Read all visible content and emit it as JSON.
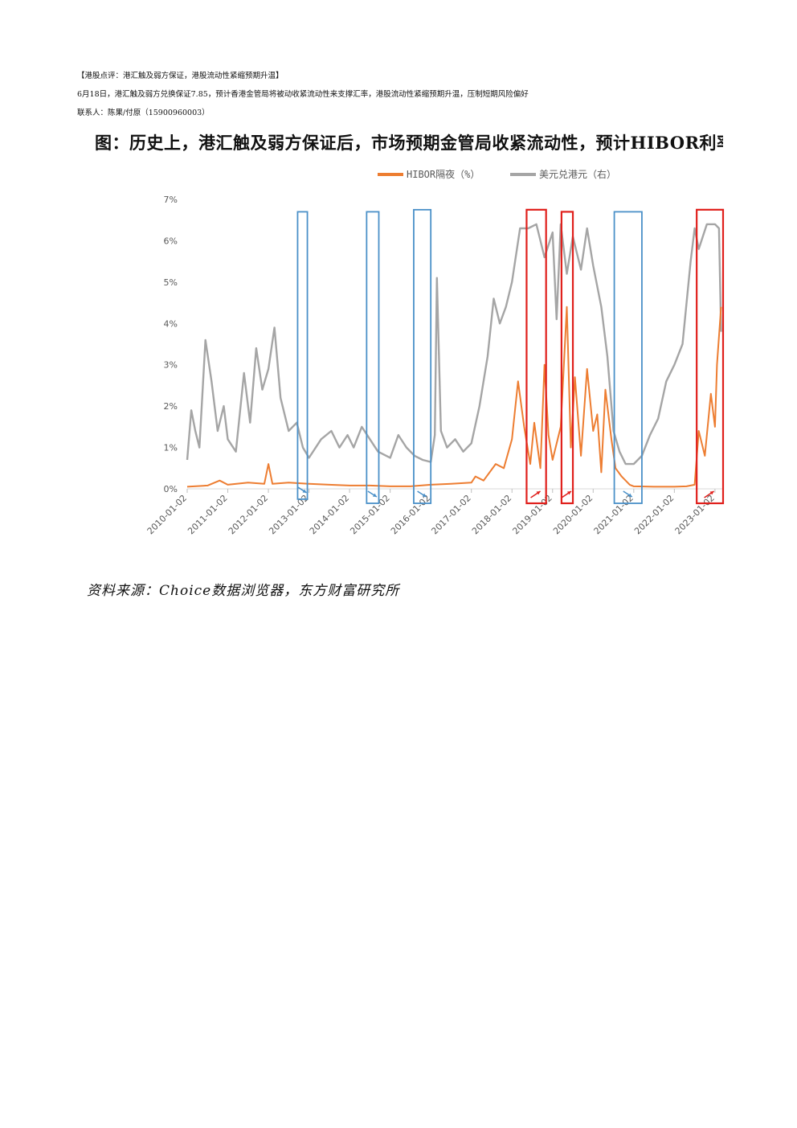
{
  "header": {
    "line1": "【港股点评：港汇触及弱方保证，港股流动性紧缩预期升温】",
    "line2": "6月18日，港汇触及弱方兑换保证7.85，预计香港金管局将被动收紧流动性来支撑汇率，港股流动性紧缩预期升温，压制短期风险偏好",
    "line3": "联系人：陈果/付原（15900960003）"
  },
  "figure_title": "图：历史上，港汇触及弱方保证后，市场预期金管局收紧流动性，预计HIBOR利率会",
  "source": "资料来源：Choice数据浏览器，东方财富研究所",
  "chart_data": {
    "type": "line",
    "title": "",
    "legend_position": "top",
    "series": [
      {
        "name": "HIBOR隔夜（%）",
        "color": "#ED7D31",
        "axis": "left",
        "points": [
          [
            2010.0,
            0.05
          ],
          [
            2010.5,
            0.08
          ],
          [
            2010.8,
            0.2
          ],
          [
            2011.0,
            0.1
          ],
          [
            2011.5,
            0.15
          ],
          [
            2011.9,
            0.12
          ],
          [
            2012.0,
            0.6
          ],
          [
            2012.1,
            0.12
          ],
          [
            2012.5,
            0.15
          ],
          [
            2013.0,
            0.12
          ],
          [
            2013.5,
            0.1
          ],
          [
            2014.0,
            0.08
          ],
          [
            2014.5,
            0.08
          ],
          [
            2015.0,
            0.06
          ],
          [
            2015.5,
            0.06
          ],
          [
            2016.0,
            0.1
          ],
          [
            2016.5,
            0.12
          ],
          [
            2017.0,
            0.15
          ],
          [
            2017.1,
            0.3
          ],
          [
            2017.3,
            0.2
          ],
          [
            2017.6,
            0.6
          ],
          [
            2017.8,
            0.5
          ],
          [
            2018.0,
            1.2
          ],
          [
            2018.15,
            2.6
          ],
          [
            2018.3,
            1.5
          ],
          [
            2018.45,
            0.6
          ],
          [
            2018.55,
            1.6
          ],
          [
            2018.7,
            0.5
          ],
          [
            2018.8,
            3.0
          ],
          [
            2018.9,
            1.3
          ],
          [
            2019.0,
            0.7
          ],
          [
            2019.2,
            1.5
          ],
          [
            2019.35,
            4.4
          ],
          [
            2019.45,
            1.0
          ],
          [
            2019.55,
            2.7
          ],
          [
            2019.7,
            0.8
          ],
          [
            2019.85,
            2.9
          ],
          [
            2020.0,
            1.4
          ],
          [
            2020.1,
            1.8
          ],
          [
            2020.2,
            0.4
          ],
          [
            2020.3,
            2.4
          ],
          [
            2020.45,
            1.2
          ],
          [
            2020.55,
            0.5
          ],
          [
            2020.7,
            0.3
          ],
          [
            2020.9,
            0.1
          ],
          [
            2021.0,
            0.06
          ],
          [
            2021.5,
            0.05
          ],
          [
            2022.0,
            0.05
          ],
          [
            2022.3,
            0.06
          ],
          [
            2022.5,
            0.1
          ],
          [
            2022.6,
            1.4
          ],
          [
            2022.75,
            0.8
          ],
          [
            2022.9,
            2.3
          ],
          [
            2023.0,
            1.5
          ],
          [
            2023.05,
            3.0
          ],
          [
            2023.15,
            4.4
          ]
        ]
      },
      {
        "name": "美元兑港元（右）",
        "color": "#A5A5A5",
        "axis": "right",
        "points": [
          [
            2010.0,
            0.7
          ],
          [
            2010.1,
            1.9
          ],
          [
            2010.2,
            1.4
          ],
          [
            2010.3,
            1.0
          ],
          [
            2010.45,
            3.6
          ],
          [
            2010.6,
            2.6
          ],
          [
            2010.75,
            1.4
          ],
          [
            2010.9,
            2.0
          ],
          [
            2011.0,
            1.2
          ],
          [
            2011.2,
            0.9
          ],
          [
            2011.4,
            2.8
          ],
          [
            2011.55,
            1.6
          ],
          [
            2011.7,
            3.4
          ],
          [
            2011.85,
            2.4
          ],
          [
            2012.0,
            2.9
          ],
          [
            2012.15,
            3.9
          ],
          [
            2012.3,
            2.2
          ],
          [
            2012.5,
            1.4
          ],
          [
            2012.7,
            1.6
          ],
          [
            2012.85,
            1.0
          ],
          [
            2013.0,
            0.75
          ],
          [
            2013.3,
            1.2
          ],
          [
            2013.55,
            1.4
          ],
          [
            2013.75,
            1.0
          ],
          [
            2013.95,
            1.3
          ],
          [
            2014.1,
            1.0
          ],
          [
            2014.3,
            1.5
          ],
          [
            2014.5,
            1.2
          ],
          [
            2014.7,
            0.9
          ],
          [
            2015.0,
            0.75
          ],
          [
            2015.2,
            1.3
          ],
          [
            2015.4,
            1.0
          ],
          [
            2015.6,
            0.8
          ],
          [
            2015.8,
            0.7
          ],
          [
            2016.0,
            0.65
          ],
          [
            2016.1,
            1.3
          ],
          [
            2016.15,
            5.1
          ],
          [
            2016.25,
            1.4
          ],
          [
            2016.4,
            1.0
          ],
          [
            2016.6,
            1.2
          ],
          [
            2016.8,
            0.9
          ],
          [
            2017.0,
            1.1
          ],
          [
            2017.2,
            2.0
          ],
          [
            2017.4,
            3.2
          ],
          [
            2017.55,
            4.6
          ],
          [
            2017.7,
            4.0
          ],
          [
            2017.85,
            4.4
          ],
          [
            2018.0,
            5.0
          ],
          [
            2018.2,
            6.3
          ],
          [
            2018.4,
            6.3
          ],
          [
            2018.6,
            6.4
          ],
          [
            2018.8,
            5.6
          ],
          [
            2019.0,
            6.2
          ],
          [
            2019.1,
            4.1
          ],
          [
            2019.2,
            6.4
          ],
          [
            2019.35,
            5.2
          ],
          [
            2019.5,
            6.1
          ],
          [
            2019.7,
            5.3
          ],
          [
            2019.85,
            6.3
          ],
          [
            2020.0,
            5.4
          ],
          [
            2020.2,
            4.4
          ],
          [
            2020.35,
            3.2
          ],
          [
            2020.5,
            1.4
          ],
          [
            2020.65,
            0.9
          ],
          [
            2020.8,
            0.6
          ],
          [
            2021.0,
            0.6
          ],
          [
            2021.2,
            0.8
          ],
          [
            2021.4,
            1.3
          ],
          [
            2021.6,
            1.7
          ],
          [
            2021.8,
            2.6
          ],
          [
            2022.0,
            3.0
          ],
          [
            2022.2,
            3.5
          ],
          [
            2022.4,
            5.5
          ],
          [
            2022.5,
            6.3
          ],
          [
            2022.6,
            5.8
          ],
          [
            2022.8,
            6.4
          ],
          [
            2023.0,
            6.4
          ],
          [
            2023.1,
            6.3
          ],
          [
            2023.15,
            3.8
          ]
        ]
      }
    ],
    "xlim": [
      2010.0,
      2023.2
    ],
    "ylim_left": [
      0,
      7
    ],
    "y_ticks": [
      "0%",
      "1%",
      "2%",
      "3%",
      "4%",
      "5%",
      "6%",
      "7%"
    ],
    "x_ticks": [
      {
        "year": 2010,
        "label": "2010-01-02"
      },
      {
        "year": 2011,
        "label": "2011-01-02"
      },
      {
        "year": 2012,
        "label": "2012-01-02"
      },
      {
        "year": 2013,
        "label": "2013-01-02"
      },
      {
        "year": 2014,
        "label": "2014-01-02"
      },
      {
        "year": 2015,
        "label": "2015-01-02"
      },
      {
        "year": 2016,
        "label": "2016-01-02"
      },
      {
        "year": 2017,
        "label": "2017-01-02"
      },
      {
        "year": 2018,
        "label": "2018-01-02"
      },
      {
        "year": 2019,
        "label": "2019-01-02"
      },
      {
        "year": 2020,
        "label": "2020-01-02"
      },
      {
        "year": 2021,
        "label": "2021-01-02"
      },
      {
        "year": 2022,
        "label": "2022-01-02"
      },
      {
        "year": 2023,
        "label": "2023-01-02"
      }
    ],
    "annotations": [
      {
        "kind": "box",
        "color": "#4A90C8",
        "x0": 2012.72,
        "x1": 2012.96,
        "y0": -0.25,
        "y1": 6.7,
        "arrow": "down"
      },
      {
        "kind": "box",
        "color": "#4A90C8",
        "x0": 2014.42,
        "x1": 2014.72,
        "y0": -0.35,
        "y1": 6.7,
        "arrow": "down"
      },
      {
        "kind": "box",
        "color": "#4A90C8",
        "x0": 2015.58,
        "x1": 2016.0,
        "y0": -0.35,
        "y1": 6.75,
        "arrow": "down"
      },
      {
        "kind": "box",
        "color": "#E0201C",
        "x0": 2018.36,
        "x1": 2018.84,
        "y0": -0.35,
        "y1": 6.75,
        "arrow": "up"
      },
      {
        "kind": "box",
        "color": "#E0201C",
        "x0": 2019.22,
        "x1": 2019.5,
        "y0": -0.35,
        "y1": 6.7,
        "arrow": "up"
      },
      {
        "kind": "box",
        "color": "#4A90C8",
        "x0": 2020.52,
        "x1": 2021.2,
        "y0": -0.35,
        "y1": 6.7,
        "arrow": "down"
      },
      {
        "kind": "box",
        "color": "#E0201C",
        "x0": 2022.55,
        "x1": 2023.2,
        "y0": -0.35,
        "y1": 6.75,
        "arrow": "up"
      }
    ]
  }
}
